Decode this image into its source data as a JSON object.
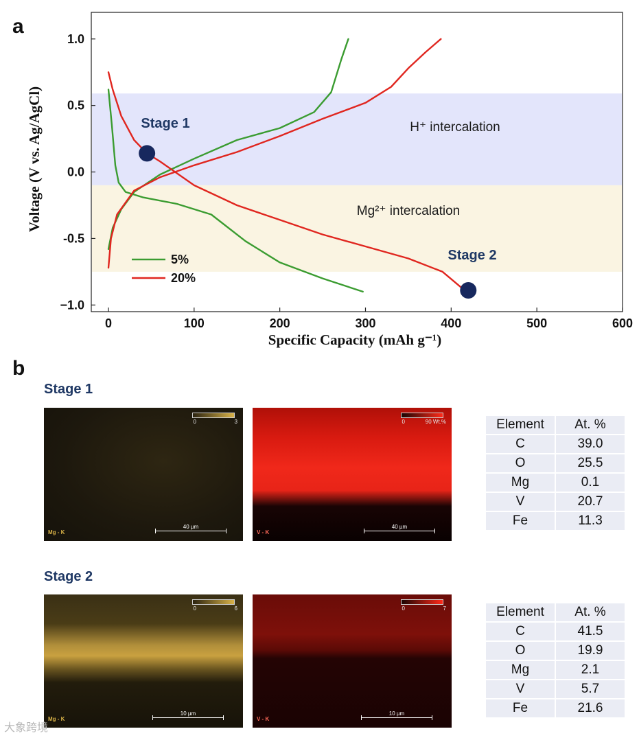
{
  "panels": {
    "a": "a",
    "b": "b"
  },
  "chart_data": {
    "type": "line",
    "xlabel": "Specific Capacity (mAh g⁻¹)",
    "ylabel": "Voltage (V vs. Ag/AgCl)",
    "xlim": [
      -20,
      600
    ],
    "ylim": [
      -1.05,
      1.2
    ],
    "xticks": [
      0,
      100,
      200,
      300,
      400,
      500,
      600
    ],
    "yticks": [
      -1.0,
      -0.5,
      0.0,
      0.5,
      1.0
    ],
    "xtick_labels": [
      "0",
      "100",
      "200",
      "300",
      "400",
      "500",
      "600"
    ],
    "ytick_labels": [
      "−1.0",
      "-0.5",
      "0.0",
      "0.5",
      "1.0"
    ],
    "regions": [
      {
        "label": "H⁺ intercalation",
        "y_range": [
          -0.1,
          0.59
        ],
        "color": "#e3e5fb"
      },
      {
        "label": "Mg²⁺ intercalation",
        "y_range": [
          -0.75,
          -0.1
        ],
        "color": "#faf4e2"
      }
    ],
    "series": [
      {
        "name": "5%",
        "color": "#3b9c31",
        "segment": "discharge",
        "x": [
          0,
          4,
          8,
          12,
          20,
          40,
          80,
          120,
          160,
          200,
          250,
          297
        ],
        "y": [
          0.62,
          0.35,
          0.05,
          -0.08,
          -0.15,
          -0.19,
          -0.24,
          -0.32,
          -0.52,
          -0.68,
          -0.8,
          -0.9
        ]
      },
      {
        "name": "5%",
        "color": "#3b9c31",
        "segment": "charge",
        "x": [
          0,
          5,
          15,
          30,
          60,
          100,
          150,
          200,
          240,
          260,
          272,
          280
        ],
        "y": [
          -0.58,
          -0.42,
          -0.28,
          -0.15,
          -0.02,
          0.1,
          0.24,
          0.33,
          0.45,
          0.6,
          0.85,
          1.0
        ]
      },
      {
        "name": "20%",
        "color": "#e0261f",
        "segment": "discharge",
        "x": [
          0,
          5,
          15,
          30,
          45,
          60,
          100,
          150,
          200,
          250,
          300,
          350,
          390,
          412,
          422
        ],
        "y": [
          0.75,
          0.62,
          0.42,
          0.24,
          0.14,
          0.08,
          -0.1,
          -0.25,
          -0.36,
          -0.47,
          -0.56,
          -0.65,
          -0.75,
          -0.87,
          -0.9
        ]
      },
      {
        "name": "20%",
        "color": "#e0261f",
        "segment": "charge",
        "x": [
          0,
          3,
          10,
          30,
          60,
          100,
          150,
          200,
          250,
          300,
          330,
          350,
          370,
          388
        ],
        "y": [
          -0.72,
          -0.5,
          -0.32,
          -0.14,
          -0.04,
          0.05,
          0.15,
          0.27,
          0.4,
          0.52,
          0.64,
          0.78,
          0.9,
          1.0
        ]
      }
    ],
    "markers": [
      {
        "label": "Stage 1",
        "x": 45,
        "y": 0.14
      },
      {
        "label": "Stage 2",
        "x": 420,
        "y": -0.89
      }
    ],
    "legend": {
      "position": "bottom-left",
      "entries": [
        "5%",
        "20%"
      ]
    }
  },
  "stages": [
    {
      "title": "Stage 1",
      "maps": [
        {
          "element": "Mg - K",
          "cbar_min": "0",
          "cbar_max": "3",
          "scale": "40 µm",
          "color": "#d8b248"
        },
        {
          "element": "V - K",
          "cbar_min": "0",
          "cbar_max": "90 Wt.%",
          "scale": "40 µm",
          "color": "#ff2a1a"
        }
      ],
      "table": {
        "headers": [
          "Element",
          "At. %"
        ],
        "rows": [
          [
            "C",
            "39.0"
          ],
          [
            "O",
            "25.5"
          ],
          [
            "Mg",
            "0.1"
          ],
          [
            "V",
            "20.7"
          ],
          [
            "Fe",
            "11.3"
          ]
        ]
      }
    },
    {
      "title": "Stage 2",
      "maps": [
        {
          "element": "Mg - K",
          "cbar_min": "0",
          "cbar_max": "6",
          "scale": "10 µm",
          "color": "#d8b248"
        },
        {
          "element": "V - K",
          "cbar_min": "0",
          "cbar_max": "7",
          "scale": "10 µm",
          "color": "#ff2a1a"
        }
      ],
      "table": {
        "headers": [
          "Element",
          "At. %"
        ],
        "rows": [
          [
            "C",
            "41.5"
          ],
          [
            "O",
            "19.9"
          ],
          [
            "Mg",
            "2.1"
          ],
          [
            "V",
            "5.7"
          ],
          [
            "Fe",
            "21.6"
          ]
        ]
      }
    }
  ],
  "watermark": "大象跨境"
}
